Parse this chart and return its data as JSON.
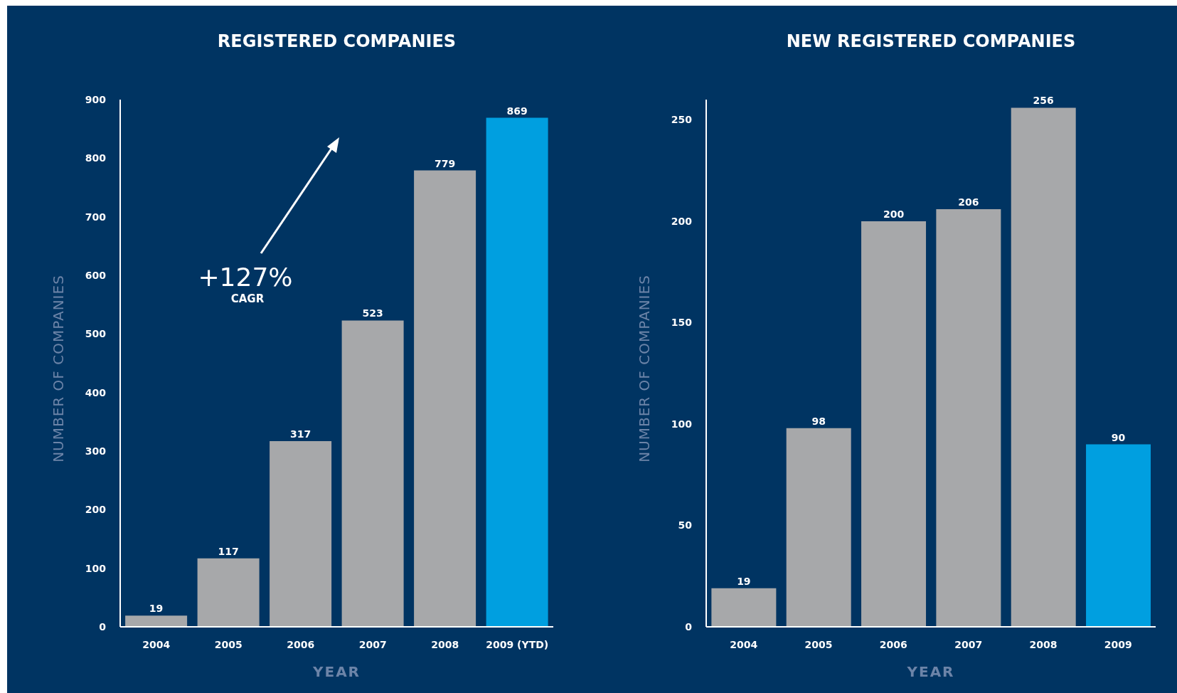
{
  "chart_data": [
    {
      "type": "bar",
      "title": "REGISTERED COMPANIES",
      "xlabel": "YEAR",
      "ylabel": "NUMBER OF COMPANIES",
      "categories": [
        "2004",
        "2005",
        "2006",
        "2007",
        "2008",
        "2009 (YTD)"
      ],
      "values": [
        19,
        117,
        317,
        523,
        779,
        869
      ],
      "colors": [
        "#a7a8aa",
        "#a7a8aa",
        "#a7a8aa",
        "#a7a8aa",
        "#a7a8aa",
        "#009fe0"
      ],
      "ylim": [
        0,
        900
      ],
      "yticks": [
        0,
        100,
        200,
        300,
        400,
        500,
        600,
        700,
        800,
        900
      ],
      "data_labels": true,
      "annotations": [
        "+127%",
        "CAGR"
      ]
    },
    {
      "type": "bar",
      "title": "NEW REGISTERED COMPANIES",
      "xlabel": "YEAR",
      "ylabel": "NUMBER OF COMPANIES",
      "categories": [
        "2004",
        "2005",
        "2006",
        "2007",
        "2008",
        "2009"
      ],
      "values": [
        19,
        98,
        200,
        206,
        256,
        90
      ],
      "colors": [
        "#a7a8aa",
        "#a7a8aa",
        "#a7a8aa",
        "#a7a8aa",
        "#a7a8aa",
        "#009fe0"
      ],
      "ylim": [
        0,
        260
      ],
      "yticks": [
        0,
        50,
        100,
        150,
        200,
        250
      ],
      "data_labels": true
    }
  ]
}
